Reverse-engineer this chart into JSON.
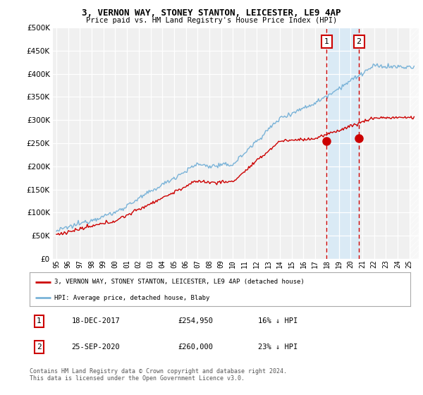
{
  "title": "3, VERNON WAY, STONEY STANTON, LEICESTER, LE9 4AP",
  "subtitle": "Price paid vs. HM Land Registry's House Price Index (HPI)",
  "legend_line1": "3, VERNON WAY, STONEY STANTON, LEICESTER, LE9 4AP (detached house)",
  "legend_line2": "HPI: Average price, detached house, Blaby",
  "annotation1_date": "18-DEC-2017",
  "annotation1_price": "£254,950",
  "annotation1_hpi": "16% ↓ HPI",
  "annotation2_date": "25-SEP-2020",
  "annotation2_price": "£260,000",
  "annotation2_hpi": "23% ↓ HPI",
  "footer": "Contains HM Land Registry data © Crown copyright and database right 2024.\nThis data is licensed under the Open Government Licence v3.0.",
  "hpi_color": "#7ab3d8",
  "price_color": "#cc0000",
  "background_color": "#ffffff",
  "plot_bg_color": "#f0f0f0",
  "highlight_bg_color": "#daeaf5",
  "ylim": [
    0,
    500000
  ],
  "yticks": [
    0,
    50000,
    100000,
    150000,
    200000,
    250000,
    300000,
    350000,
    400000,
    450000,
    500000
  ],
  "sale1_t": 2017.96,
  "sale1_p": 254950,
  "sale2_t": 2020.71,
  "sale2_p": 260000,
  "xmin": 1994.7,
  "xmax": 2025.5
}
